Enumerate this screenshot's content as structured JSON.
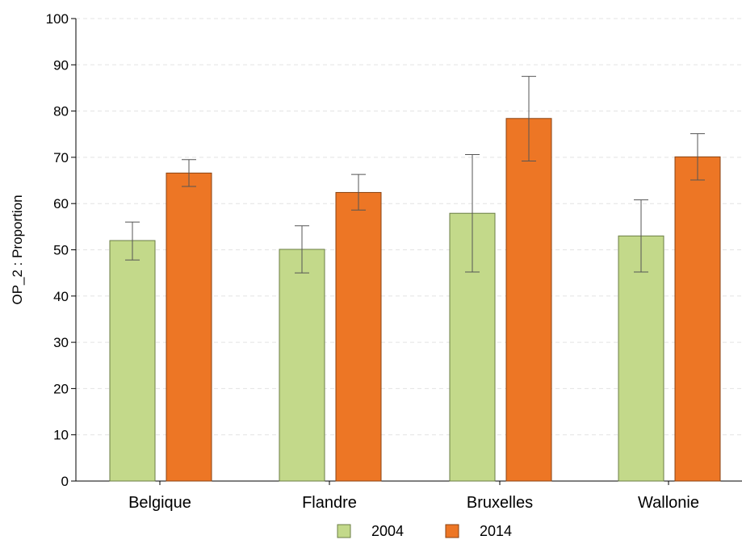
{
  "chart_data": {
    "type": "bar",
    "title": "",
    "xlabel": "",
    "ylabel": "OP_2 : Proportion",
    "ylim": [
      0,
      100
    ],
    "yticks": [
      0,
      10,
      20,
      30,
      40,
      50,
      60,
      70,
      80,
      90,
      100
    ],
    "grid": true,
    "legend_position": "bottom",
    "categories": [
      "Belgique",
      "Flandre",
      "Bruxelles",
      "Wallonie"
    ],
    "series": [
      {
        "name": "2004",
        "color": "#c3d98a",
        "edge_color": "#6b7d46",
        "values": [
          52.0,
          50.1,
          57.9,
          53.0
        ],
        "err_low": [
          47.8,
          45.0,
          45.2,
          45.2
        ],
        "err_high": [
          56.0,
          55.2,
          70.6,
          60.8
        ]
      },
      {
        "name": "2014",
        "color": "#ed7625",
        "edge_color": "#8a4312",
        "values": [
          66.6,
          62.4,
          78.4,
          70.1
        ],
        "err_low": [
          63.7,
          58.6,
          69.2,
          65.1
        ],
        "err_high": [
          69.5,
          66.3,
          87.5,
          75.1
        ]
      }
    ]
  }
}
